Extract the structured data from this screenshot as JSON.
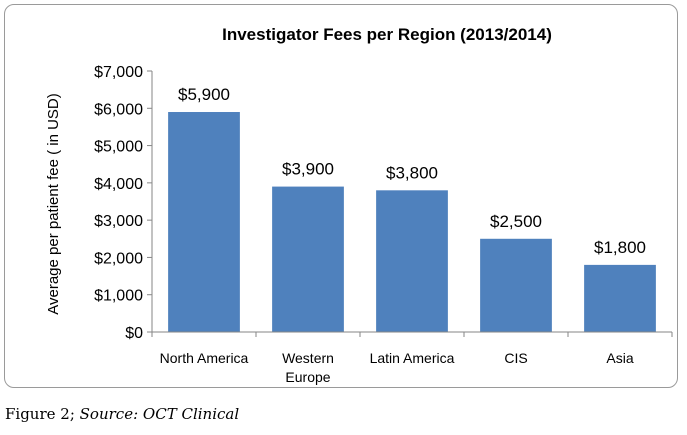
{
  "chart_data": {
    "type": "bar",
    "title": "Investigator Fees per Region (2013/2014)",
    "ylabel": "Average per patient fee ( in USD)",
    "xlabel": "",
    "categories": [
      "North America",
      "Western Europe",
      "Latin America",
      "CIS",
      "Asia"
    ],
    "category_lines": [
      [
        "North America"
      ],
      [
        "Western",
        "Europe"
      ],
      [
        "Latin America"
      ],
      [
        "CIS"
      ],
      [
        "Asia"
      ]
    ],
    "values": [
      5900,
      3900,
      3800,
      2500,
      1800
    ],
    "data_labels": [
      "$5,900",
      "$3,900",
      "$3,800",
      "$2,500",
      "$1,800"
    ],
    "ylim": [
      0,
      7000
    ],
    "yticks": [
      0,
      1000,
      2000,
      3000,
      4000,
      5000,
      6000,
      7000
    ],
    "ytick_labels": [
      "$0",
      "$1,000",
      "$2,000",
      "$3,000",
      "$4,000",
      "$5,000",
      "$6,000",
      "$7,000"
    ],
    "grid": false,
    "legend": "none",
    "bar_color": "#4f81bd"
  },
  "caption": {
    "figure": "Figure 2",
    "separator": "; ",
    "source_label": "Source:",
    "source_name": "OCT Clinical"
  }
}
